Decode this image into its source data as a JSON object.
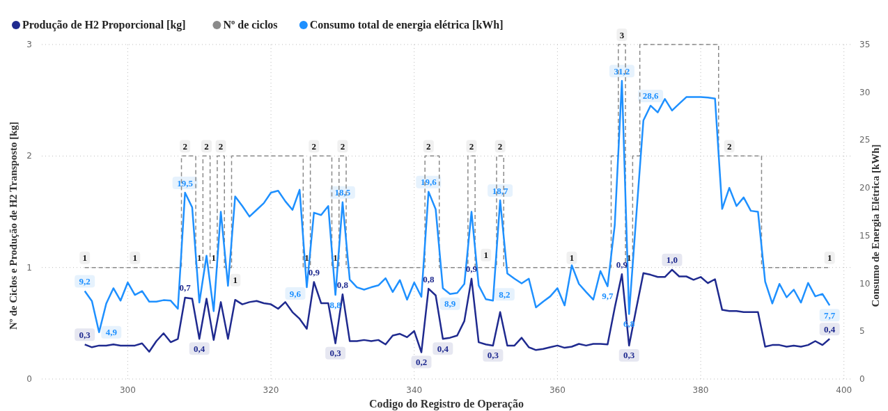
{
  "chart_data": {
    "type": "line",
    "xlabel": "Codigo do Registro de Operação",
    "ylabel": "Nº de Ciclos e Produção de H2 Transposto [kg]",
    "y2label": "Consumo de Energia Elétrica [kWh]",
    "xlim": [
      288,
      401
    ],
    "xticks": [
      300,
      320,
      340,
      360,
      380,
      400
    ],
    "ylim": [
      0,
      3
    ],
    "yticks": [
      0,
      1,
      2,
      3
    ],
    "y2lim": [
      0,
      35
    ],
    "y2ticks": [
      0,
      5,
      10,
      15,
      20,
      25,
      30,
      35
    ],
    "grid": true,
    "legend": "top left",
    "marker": "none",
    "x": [
      294,
      295,
      296,
      297,
      298,
      299,
      300,
      301,
      302,
      303,
      304,
      305,
      306,
      307,
      308,
      309,
      310,
      311,
      312,
      313,
      314,
      315,
      316,
      317,
      318,
      319,
      320,
      321,
      322,
      323,
      324,
      325,
      326,
      327,
      328,
      329,
      330,
      331,
      332,
      333,
      334,
      335,
      336,
      337,
      338,
      339,
      340,
      341,
      342,
      343,
      344,
      345,
      346,
      347,
      348,
      349,
      350,
      351,
      352,
      353,
      354,
      355,
      356,
      357,
      358,
      359,
      360,
      361,
      362,
      363,
      364,
      365,
      366,
      367,
      368,
      369,
      370,
      371,
      372,
      373,
      374,
      375,
      376,
      377,
      378,
      379,
      380,
      381,
      382,
      383,
      384,
      385,
      386,
      387,
      388,
      389,
      390,
      391,
      392,
      393,
      394,
      395,
      396,
      397,
      398
    ],
    "series": [
      {
        "name": "Produção de H2 Proporcional [kg]",
        "type": "line",
        "color": "#1f2a8f",
        "line_style": "solid",
        "values": [
          0.31,
          0.285,
          0.3,
          0.3,
          0.31,
          0.3,
          0.3,
          0.3,
          0.32,
          0.245,
          0.34,
          0.41,
          0.33,
          0.36,
          0.73,
          0.72,
          0.36,
          0.72,
          0.35,
          0.69,
          0.36,
          0.71,
          0.67,
          0.69,
          0.7,
          0.68,
          0.67,
          0.63,
          0.69,
          0.6,
          0.54,
          0.45,
          0.87,
          0.68,
          0.68,
          0.32,
          0.76,
          0.34,
          0.34,
          0.35,
          0.34,
          0.35,
          0.31,
          0.39,
          0.405,
          0.375,
          0.43,
          0.24,
          0.81,
          0.75,
          0.36,
          0.37,
          0.39,
          0.52,
          0.9,
          0.33,
          0.31,
          0.3,
          0.6,
          0.3,
          0.3,
          0.37,
          0.285,
          0.26,
          0.27,
          0.285,
          0.3,
          0.28,
          0.29,
          0.315,
          0.3,
          0.315,
          0.315,
          0.31,
          0.64,
          0.94,
          0.3,
          0.63,
          0.95,
          0.935,
          0.915,
          0.915,
          0.98,
          0.92,
          0.92,
          0.89,
          0.915,
          0.86,
          0.895,
          0.62,
          0.61,
          0.61,
          0.6,
          0.6,
          0.6,
          0.29,
          0.305,
          0.305,
          0.29,
          0.3,
          0.29,
          0.305,
          0.34,
          0.305,
          0.36
        ],
        "value_labels": [
          "0,3",
          null,
          null,
          null,
          null,
          null,
          null,
          null,
          null,
          null,
          null,
          null,
          null,
          null,
          "0,7",
          null,
          "0,4",
          null,
          null,
          null,
          null,
          null,
          null,
          null,
          null,
          null,
          null,
          null,
          null,
          null,
          null,
          null,
          "0,9",
          null,
          null,
          "0,3",
          "0,8",
          null,
          null,
          null,
          null,
          null,
          null,
          null,
          null,
          null,
          null,
          "0,2",
          "0,8",
          null,
          "0,4",
          null,
          null,
          null,
          "0,9",
          null,
          null,
          "0,3",
          null,
          null,
          null,
          null,
          null,
          null,
          null,
          null,
          null,
          null,
          null,
          null,
          null,
          null,
          null,
          null,
          null,
          "0,9",
          "0,3",
          null,
          null,
          null,
          null,
          null,
          "1,0",
          null,
          null,
          null,
          null,
          null,
          null,
          null,
          null,
          null,
          null,
          null,
          null,
          null,
          null,
          null,
          null,
          null,
          null,
          null,
          null,
          null,
          "0,4"
        ]
      },
      {
        "name": "Nº de ciclos",
        "type": "step",
        "color": "#8a8a8a",
        "line_style": "dashed",
        "values": [
          1,
          1,
          1,
          1,
          1,
          1,
          1,
          1,
          1,
          1,
          1,
          1,
          1,
          1,
          2,
          2,
          1,
          2,
          1,
          2,
          1,
          2,
          2,
          2,
          2,
          2,
          2,
          2,
          2,
          2,
          2,
          1,
          2,
          2,
          2,
          1,
          2,
          1,
          1,
          1,
          1,
          1,
          1,
          1,
          1,
          1,
          1,
          1,
          2,
          2,
          1,
          1,
          1,
          1,
          2,
          1,
          1,
          1,
          2,
          1,
          1,
          1,
          1,
          1,
          1,
          1,
          1,
          1,
          1,
          1,
          1,
          1,
          1,
          1,
          2,
          3,
          1,
          2,
          3,
          3,
          3,
          3,
          3,
          3,
          3,
          3,
          3,
          3,
          3,
          2,
          2,
          2,
          2,
          2,
          2,
          1,
          1,
          1,
          1,
          1,
          1,
          1,
          1,
          1,
          1
        ],
        "value_labels": [
          "1",
          null,
          null,
          null,
          null,
          null,
          null,
          "1",
          null,
          null,
          null,
          null,
          null,
          null,
          "2",
          null,
          "1",
          "2",
          "1",
          "2",
          "1",
          null,
          null,
          null,
          null,
          null,
          null,
          null,
          null,
          null,
          null,
          "1",
          "2",
          null,
          null,
          "1",
          "2",
          null,
          null,
          null,
          null,
          null,
          null,
          null,
          null,
          null,
          null,
          null,
          "2",
          null,
          null,
          null,
          null,
          null,
          "2",
          "1",
          null,
          null,
          "2",
          null,
          null,
          null,
          null,
          null,
          null,
          null,
          null,
          null,
          "1",
          null,
          null,
          null,
          null,
          null,
          null,
          "3",
          "1",
          null,
          null,
          null,
          null,
          null,
          null,
          null,
          null,
          null,
          null,
          null,
          null,
          null,
          "2",
          null,
          null,
          null,
          null,
          null,
          null,
          null,
          null,
          null,
          null,
          null,
          null,
          null,
          "1"
        ]
      },
      {
        "name": "Consumo total de energia elétrica [kWh]",
        "type": "line",
        "axis": "y2",
        "color": "#1e90ff",
        "line_style": "solid",
        "values": [
          9.2,
          8.15,
          4.9,
          7.9,
          9.5,
          8.2,
          10.1,
          8.8,
          9.2,
          8.1,
          8.1,
          8.25,
          8.2,
          7.35,
          19.5,
          17.95,
          8.0,
          12.9,
          7.1,
          17.5,
          9.75,
          19.1,
          18.1,
          17.0,
          17.7,
          18.4,
          19.5,
          19.7,
          18.6,
          17.7,
          19.8,
          9.6,
          17.4,
          17.15,
          18.1,
          8.8,
          18.5,
          10.4,
          9.6,
          9.35,
          9.6,
          9.8,
          10.55,
          9.1,
          10.35,
          8.3,
          10.1,
          8.6,
          19.6,
          17.75,
          9.5,
          8.9,
          9.0,
          9.95,
          17.5,
          9.8,
          8.35,
          8.2,
          18.7,
          11.05,
          10.5,
          10.0,
          10.5,
          7.5,
          8.1,
          8.65,
          9.5,
          7.7,
          11.9,
          9.95,
          9.1,
          8.3,
          11.3,
          9.7,
          16.1,
          31.2,
          6.8,
          17.0,
          27.05,
          28.6,
          27.9,
          29.3,
          28.1,
          28.8,
          29.5,
          29.5,
          29.5,
          29.45,
          29.35,
          17.8,
          20.0,
          18.1,
          19.0,
          17.6,
          17.5,
          10.2,
          7.9,
          9.95,
          8.55,
          9.35,
          8.0,
          10.05,
          8.65,
          8.9,
          7.7
        ],
        "value_labels": [
          "9,2",
          null,
          "4,9",
          null,
          null,
          null,
          null,
          null,
          null,
          null,
          null,
          null,
          null,
          null,
          "19,5",
          null,
          null,
          null,
          null,
          null,
          null,
          null,
          null,
          null,
          null,
          null,
          null,
          null,
          null,
          null,
          null,
          "9,6",
          null,
          null,
          null,
          "8,8",
          "18,5",
          null,
          null,
          null,
          null,
          null,
          null,
          null,
          null,
          null,
          null,
          null,
          "19,6",
          null,
          null,
          "8,9",
          null,
          null,
          null,
          null,
          null,
          "8,2",
          "18,7",
          null,
          null,
          null,
          null,
          null,
          null,
          null,
          null,
          null,
          null,
          null,
          null,
          null,
          null,
          "9,7",
          null,
          "31,2",
          "6,8",
          null,
          null,
          "28,6",
          null,
          null,
          null,
          null,
          null,
          null,
          null,
          null,
          null,
          null,
          null,
          null,
          null,
          null,
          null,
          null,
          null,
          null,
          null,
          null,
          null,
          null,
          null,
          null,
          "7,7"
        ]
      }
    ]
  }
}
